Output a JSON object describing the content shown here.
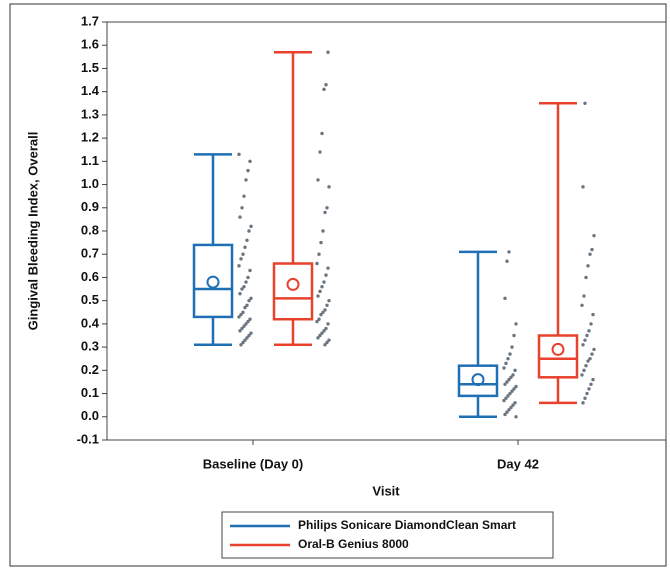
{
  "chart_data": {
    "type": "box",
    "x_label": "Visit",
    "y_label": "Gingival Bleeding Index, Overall",
    "categories": [
      "Baseline (Day 0)",
      "Day 42"
    ],
    "ylim": [
      -0.1,
      1.7
    ],
    "yticks": [
      -0.1,
      {
        "value": 0,
        "label": "0.0"
      },
      0.1,
      0.2,
      0.3,
      0.4,
      0.5,
      0.6,
      0.7,
      0.8,
      0.9,
      {
        "value": 1,
        "label": "1.0"
      },
      1.1,
      1.2,
      1.3,
      1.4,
      1.5,
      1.6,
      1.7
    ],
    "point_color": "#6b7580",
    "series": [
      {
        "name": "Philips Sonicare DiamondClean Smart",
        "color": "#1f6fb4",
        "boxes": [
          {
            "min": 0.31,
            "q1": 0.43,
            "median": 0.55,
            "q3": 0.74,
            "max": 1.13,
            "mean": 0.58,
            "points": [
              1.13,
              1.1,
              1.06,
              1.02,
              0.95,
              0.9,
              0.86,
              0.82,
              0.8,
              0.76,
              0.73,
              0.7,
              0.68,
              0.65,
              0.63,
              0.6,
              0.58,
              0.56,
              0.55,
              0.53,
              0.51,
              0.5,
              0.48,
              0.47,
              0.45,
              0.44,
              0.43,
              0.42,
              0.41,
              0.4,
              0.39,
              0.38,
              0.37,
              0.36,
              0.35,
              0.34,
              0.33,
              0.32,
              0.31
            ]
          },
          {
            "min": 0.0,
            "q1": 0.09,
            "median": 0.14,
            "q3": 0.22,
            "max": 0.71,
            "mean": 0.16,
            "points": [
              0.71,
              0.67,
              0.51,
              0.4,
              0.35,
              0.3,
              0.27,
              0.25,
              0.23,
              0.21,
              0.2,
              0.18,
              0.17,
              0.16,
              0.15,
              0.14,
              0.13,
              0.12,
              0.11,
              0.1,
              0.09,
              0.08,
              0.07,
              0.06,
              0.05,
              0.04,
              0.03,
              0.02,
              0.01,
              0.0
            ]
          }
        ]
      },
      {
        "name": "Oral-B Genius 8000",
        "color": "#e8412c",
        "boxes": [
          {
            "min": 0.31,
            "q1": 0.42,
            "median": 0.51,
            "q3": 0.66,
            "max": 1.57,
            "mean": 0.57,
            "points": [
              1.57,
              1.43,
              1.41,
              1.22,
              1.14,
              1.02,
              0.99,
              0.9,
              0.88,
              0.8,
              0.75,
              0.7,
              0.66,
              0.64,
              0.61,
              0.58,
              0.56,
              0.54,
              0.52,
              0.5,
              0.48,
              0.46,
              0.45,
              0.44,
              0.42,
              0.41,
              0.4,
              0.38,
              0.37,
              0.36,
              0.35,
              0.34,
              0.33,
              0.32,
              0.31
            ]
          },
          {
            "min": 0.06,
            "q1": 0.17,
            "median": 0.25,
            "q3": 0.35,
            "max": 1.35,
            "mean": 0.29,
            "points": [
              1.35,
              0.99,
              0.78,
              0.72,
              0.7,
              0.65,
              0.6,
              0.52,
              0.48,
              0.44,
              0.4,
              0.37,
              0.35,
              0.33,
              0.31,
              0.29,
              0.27,
              0.25,
              0.24,
              0.22,
              0.2,
              0.18,
              0.16,
              0.14,
              0.12,
              0.1,
              0.08,
              0.06
            ]
          }
        ]
      }
    ]
  }
}
